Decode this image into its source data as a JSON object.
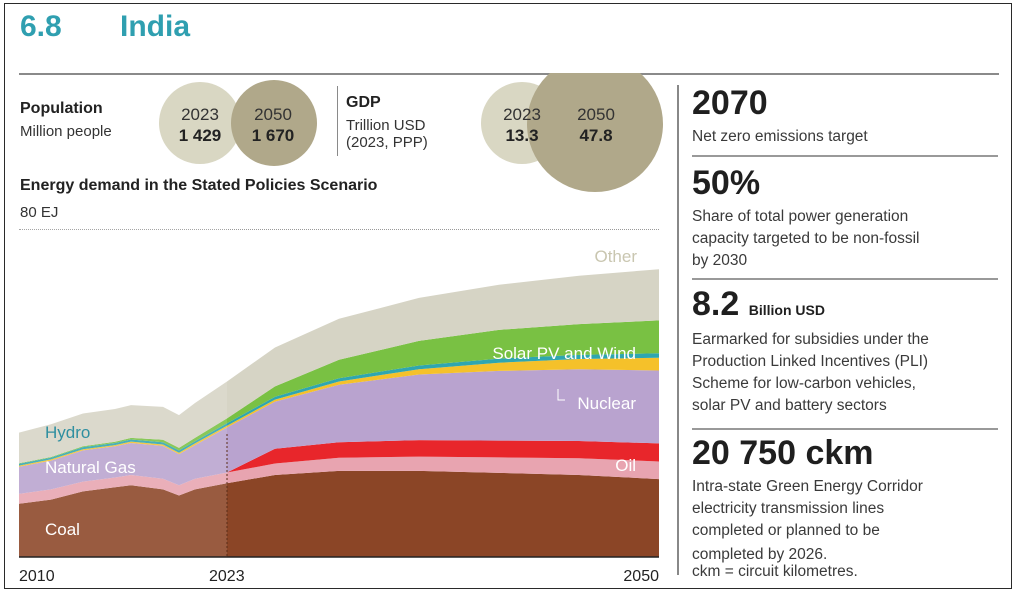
{
  "header": {
    "section_number": "6.8",
    "country": "India"
  },
  "population": {
    "label": "Population",
    "unit": "Million people",
    "year1": "2023",
    "value1": "1 429",
    "year2": "2050",
    "value2": "1 670"
  },
  "gdp": {
    "label": "GDP",
    "unit_line1": "Trillion USD",
    "unit_line2": "(2023, PPP)",
    "year1": "2023",
    "value1": "13.3",
    "year2": "2050",
    "value2": "47.8"
  },
  "colors": {
    "coal": "#8b4526",
    "oil": "#e8262b",
    "natural_gas": "#e8a4b0",
    "hydro": "#2fa6b0",
    "nuclear": "#f5c12a",
    "solar_wind": "#79c143",
    "other": "#d6d4c5",
    "purple_band": "#b9a3cf",
    "title_teal": "#2f9fb0"
  },
  "facts": [
    {
      "headline": "2070",
      "unit": "",
      "desc": [
        "Net zero emissions target"
      ]
    },
    {
      "headline": "50%",
      "unit": "",
      "desc": [
        "Share of total power generation",
        "capacity targeted to be non-fossil",
        "by 2030"
      ]
    },
    {
      "headline": "8.2",
      "unit": "Billion USD",
      "desc": [
        "Earmarked for subsidies under the",
        "Production Linked Incentives (PLI)",
        "Scheme for low-carbon vehicles,",
        "solar PV and battery sectors"
      ]
    },
    {
      "headline": "20 750 ckm",
      "unit": "",
      "desc": [
        "Intra-state Green Energy Corridor",
        "electricity transmission lines",
        "completed or planned to be",
        "completed by 2026.",
        "ckm = circuit kilometres."
      ]
    }
  ],
  "chart_data": {
    "type": "area",
    "title": "Energy demand in the Stated Policies Scenario",
    "ylabel": "80 EJ",
    "ylim": [
      0,
      80
    ],
    "x_ticks": [
      "2010",
      "2023",
      "2050"
    ],
    "projection_start": 2023,
    "x": [
      2010,
      2012,
      2014,
      2016,
      2017,
      2019,
      2020,
      2021,
      2023,
      2026,
      2030,
      2035,
      2040,
      2045,
      2050
    ],
    "series": [
      {
        "name": "Coal",
        "values": [
          13,
          14,
          16,
          17,
          17.5,
          16.5,
          15,
          16.5,
          18,
          20,
          21,
          21,
          20.5,
          20,
          19
        ]
      },
      {
        "name": "Natural Gas",
        "values": [
          2.4,
          2.5,
          2.4,
          2.4,
          2.5,
          2.6,
          2.5,
          2.6,
          2.6,
          2.8,
          3.2,
          3.5,
          3.8,
          4.1,
          4.3
        ]
      },
      {
        "name": "Oil",
        "values": [
          0,
          0,
          0,
          0,
          0,
          0,
          0,
          0,
          0,
          3.6,
          3.8,
          4.0,
          4.1,
          4.2,
          4.4
        ]
      },
      {
        "name": "",
        "values": [
          6.6,
          7.0,
          7.6,
          7.6,
          7.8,
          8.0,
          7.6,
          8.2,
          11.0,
          11.5,
          14.0,
          16.0,
          17.0,
          17.5,
          17.8
        ]
      },
      {
        "name": "Nuclear",
        "values": [
          0.3,
          0.3,
          0.3,
          0.3,
          0.35,
          0.35,
          0.35,
          0.4,
          0.4,
          0.5,
          0.8,
          1.3,
          2.0,
          2.5,
          3.1
        ]
      },
      {
        "name": "Hydro",
        "values": [
          0.45,
          0.45,
          0.5,
          0.5,
          0.5,
          0.55,
          0.55,
          0.55,
          0.6,
          0.7,
          0.8,
          0.9,
          1.0,
          1.0,
          1.1
        ]
      },
      {
        "name": "Solar PV and Wind",
        "values": [
          0.1,
          0.15,
          0.2,
          0.3,
          0.4,
          0.6,
          0.6,
          0.8,
          1.2,
          2.5,
          4.5,
          6.0,
          7.0,
          7.5,
          8.0
        ]
      },
      {
        "name": "Other",
        "values": [
          7.5,
          8.0,
          8.0,
          8.0,
          8.0,
          8.0,
          8.0,
          8.5,
          9.0,
          9.5,
          10.0,
          10.5,
          11.0,
          11.8,
          12.5
        ]
      }
    ]
  }
}
